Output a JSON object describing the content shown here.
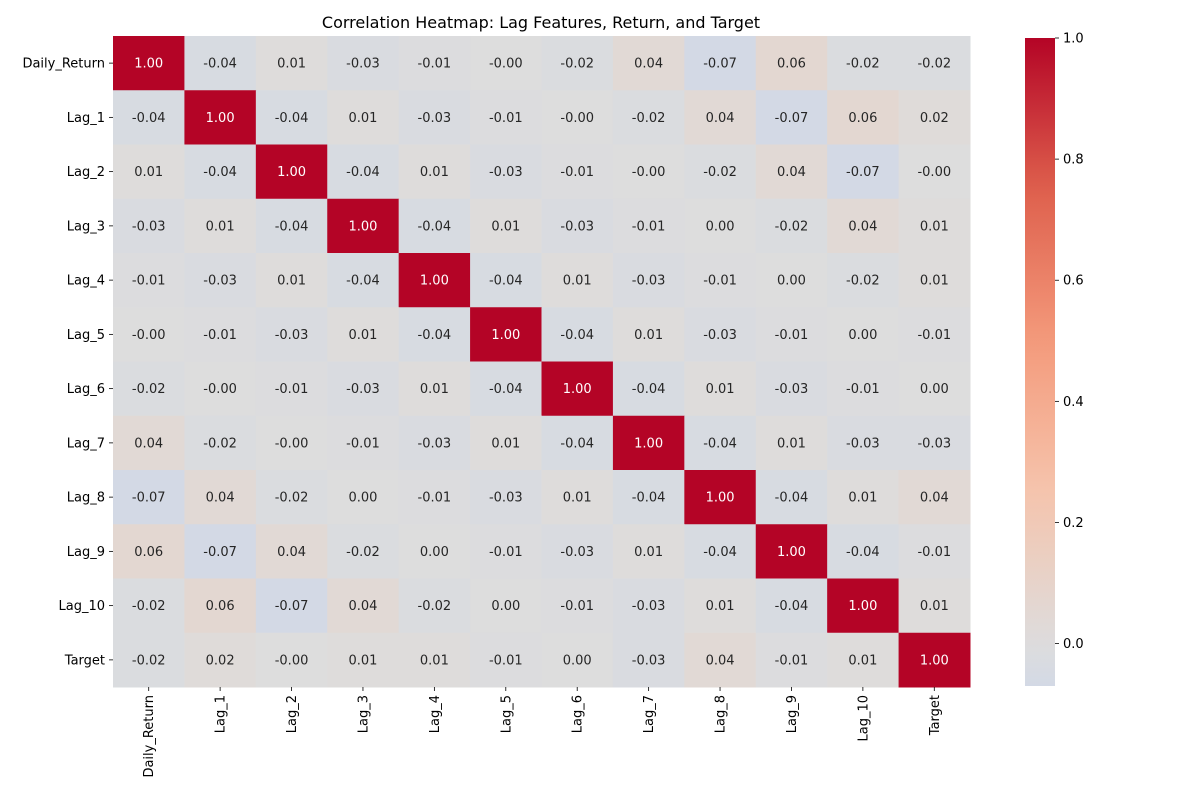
{
  "chart_data": {
    "type": "heatmap",
    "title": "Correlation Heatmap: Lag Features, Return, and Target",
    "xlabel": "",
    "ylabel": "",
    "x_categories": [
      "Daily_Return",
      "Lag_1",
      "Lag_2",
      "Lag_3",
      "Lag_4",
      "Lag_5",
      "Lag_6",
      "Lag_7",
      "Lag_8",
      "Lag_9",
      "Lag_10",
      "Target"
    ],
    "y_categories": [
      "Daily_Return",
      "Lag_1",
      "Lag_2",
      "Lag_3",
      "Lag_4",
      "Lag_5",
      "Lag_6",
      "Lag_7",
      "Lag_8",
      "Lag_9",
      "Lag_10",
      "Target"
    ],
    "values": [
      [
        1.0,
        -0.04,
        0.01,
        -0.03,
        -0.01,
        -0.0,
        -0.02,
        0.04,
        -0.07,
        0.06,
        -0.02,
        -0.02
      ],
      [
        -0.04,
        1.0,
        -0.04,
        0.01,
        -0.03,
        -0.01,
        -0.0,
        -0.02,
        0.04,
        -0.07,
        0.06,
        0.02
      ],
      [
        0.01,
        -0.04,
        1.0,
        -0.04,
        0.01,
        -0.03,
        -0.01,
        -0.0,
        -0.02,
        0.04,
        -0.07,
        -0.0
      ],
      [
        -0.03,
        0.01,
        -0.04,
        1.0,
        -0.04,
        0.01,
        -0.03,
        -0.01,
        0.0,
        -0.02,
        0.04,
        0.01
      ],
      [
        -0.01,
        -0.03,
        0.01,
        -0.04,
        1.0,
        -0.04,
        0.01,
        -0.03,
        -0.01,
        0.0,
        -0.02,
        0.01
      ],
      [
        -0.0,
        -0.01,
        -0.03,
        0.01,
        -0.04,
        1.0,
        -0.04,
        0.01,
        -0.03,
        -0.01,
        0.0,
        -0.01
      ],
      [
        -0.02,
        -0.0,
        -0.01,
        -0.03,
        0.01,
        -0.04,
        1.0,
        -0.04,
        0.01,
        -0.03,
        -0.01,
        0.0
      ],
      [
        0.04,
        -0.02,
        -0.0,
        -0.01,
        -0.03,
        0.01,
        -0.04,
        1.0,
        -0.04,
        0.01,
        -0.03,
        -0.03
      ],
      [
        -0.07,
        0.04,
        -0.02,
        0.0,
        -0.01,
        -0.03,
        0.01,
        -0.04,
        1.0,
        -0.04,
        0.01,
        0.04
      ],
      [
        0.06,
        -0.07,
        0.04,
        -0.02,
        0.0,
        -0.01,
        -0.03,
        0.01,
        -0.04,
        1.0,
        -0.04,
        -0.01
      ],
      [
        -0.02,
        0.06,
        -0.07,
        0.04,
        -0.02,
        0.0,
        -0.01,
        -0.03,
        0.01,
        -0.04,
        1.0,
        0.01
      ],
      [
        -0.02,
        0.02,
        -0.0,
        0.01,
        0.01,
        -0.01,
        0.0,
        -0.03,
        0.04,
        -0.01,
        0.01,
        1.0
      ]
    ],
    "value_labels": [
      [
        "1.00",
        "-0.04",
        "0.01",
        "-0.03",
        "-0.01",
        "-0.00",
        "-0.02",
        "0.04",
        "-0.07",
        "0.06",
        "-0.02",
        "-0.02"
      ],
      [
        "-0.04",
        "1.00",
        "-0.04",
        "0.01",
        "-0.03",
        "-0.01",
        "-0.00",
        "-0.02",
        "0.04",
        "-0.07",
        "0.06",
        "0.02"
      ],
      [
        "0.01",
        "-0.04",
        "1.00",
        "-0.04",
        "0.01",
        "-0.03",
        "-0.01",
        "-0.00",
        "-0.02",
        "0.04",
        "-0.07",
        "-0.00"
      ],
      [
        "-0.03",
        "0.01",
        "-0.04",
        "1.00",
        "-0.04",
        "0.01",
        "-0.03",
        "-0.01",
        "0.00",
        "-0.02",
        "0.04",
        "0.01"
      ],
      [
        "-0.01",
        "-0.03",
        "0.01",
        "-0.04",
        "1.00",
        "-0.04",
        "0.01",
        "-0.03",
        "-0.01",
        "0.00",
        "-0.02",
        "0.01"
      ],
      [
        "-0.00",
        "-0.01",
        "-0.03",
        "0.01",
        "-0.04",
        "1.00",
        "-0.04",
        "0.01",
        "-0.03",
        "-0.01",
        "0.00",
        "-0.01"
      ],
      [
        "-0.02",
        "-0.00",
        "-0.01",
        "-0.03",
        "0.01",
        "-0.04",
        "1.00",
        "-0.04",
        "0.01",
        "-0.03",
        "-0.01",
        "0.00"
      ],
      [
        "0.04",
        "-0.02",
        "-0.00",
        "-0.01",
        "-0.03",
        "0.01",
        "-0.04",
        "1.00",
        "-0.04",
        "0.01",
        "-0.03",
        "-0.03"
      ],
      [
        "-0.07",
        "0.04",
        "-0.02",
        "0.00",
        "-0.01",
        "-0.03",
        "0.01",
        "-0.04",
        "1.00",
        "-0.04",
        "0.01",
        "0.04"
      ],
      [
        "0.06",
        "-0.07",
        "0.04",
        "-0.02",
        "0.00",
        "-0.01",
        "-0.03",
        "0.01",
        "-0.04",
        "1.00",
        "-0.04",
        "-0.01"
      ],
      [
        "-0.02",
        "0.06",
        "-0.07",
        "0.04",
        "-0.02",
        "0.00",
        "-0.01",
        "-0.03",
        "0.01",
        "-0.04",
        "1.00",
        "0.01"
      ],
      [
        "-0.02",
        "0.02",
        "-0.00",
        "0.01",
        "0.01",
        "-0.01",
        "0.00",
        "-0.03",
        "0.04",
        "-0.01",
        "0.01",
        "1.00"
      ]
    ],
    "colormap": "coolwarm",
    "colorbar_range": [
      -0.07,
      1.0
    ],
    "colorbar_ticks": [
      "0.0",
      "0.2",
      "0.4",
      "0.6",
      "0.8",
      "1.0"
    ],
    "grid": false,
    "legend": "colorbar-right"
  }
}
